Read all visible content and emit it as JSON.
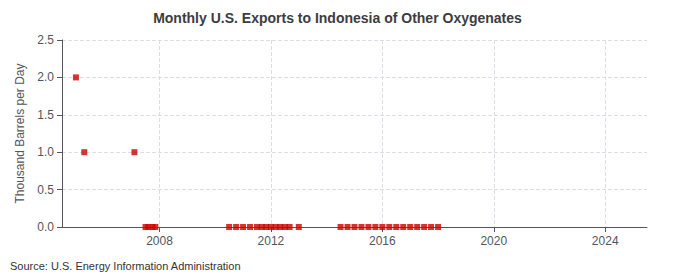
{
  "chart_data": {
    "type": "scatter",
    "title": "Monthly U.S. Exports to Indonesia of Other Oxygenates",
    "ylabel": "Thousand Barrels per Day",
    "annotations": [
      "Source: U.S. Energy Information Administration"
    ],
    "x": [
      2005.0,
      2005.3,
      2007.1,
      2007.5,
      2007.6,
      2007.75,
      2007.85,
      2010.5,
      2010.75,
      2011.0,
      2011.25,
      2011.5,
      2011.67,
      2011.83,
      2012.0,
      2012.17,
      2012.33,
      2012.5,
      2012.67,
      2013.0,
      2014.5,
      2014.75,
      2015.0,
      2015.25,
      2015.5,
      2015.75,
      2016.0,
      2016.25,
      2016.5,
      2016.75,
      2017.0,
      2017.25,
      2017.5,
      2017.75,
      2018.0
    ],
    "values": [
      2.0,
      1.0,
      1.0,
      0.0,
      0.0,
      0.0,
      0.0,
      0.0,
      0.0,
      0.0,
      0.0,
      0.0,
      0.0,
      0.0,
      0.0,
      0.0,
      0.0,
      0.0,
      0.0,
      0.0,
      0.0,
      0.0,
      0.0,
      0.0,
      0.0,
      0.0,
      0.0,
      0.0,
      0.0,
      0.0,
      0.0,
      0.0,
      0.0,
      0.0,
      0.0
    ],
    "color": "#cc0000",
    "marker": "square",
    "xlim": [
      2004.5,
      2025.5
    ],
    "xticks": [
      2008,
      2012,
      2016,
      2020,
      2024
    ],
    "ylim": [
      0,
      2.5
    ],
    "yticks": [
      {
        "value": 0.0,
        "label": "0.0"
      },
      0.5,
      {
        "value": 1.0,
        "label": "1.0"
      },
      1.5,
      {
        "value": 2.0,
        "label": "2.0"
      },
      2.5
    ],
    "grid": true
  }
}
